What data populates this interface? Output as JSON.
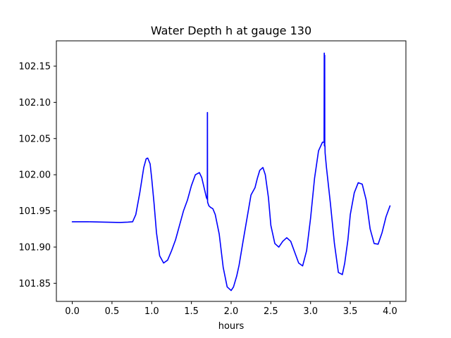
{
  "chart_data": {
    "type": "line",
    "title": "Water Depth h at gauge 130",
    "xlabel": "hours",
    "ylabel": "",
    "xlim": [
      -0.2,
      4.2
    ],
    "ylim": [
      101.825,
      102.185
    ],
    "grid": false,
    "x_ticks": [
      0.0,
      0.5,
      1.0,
      1.5,
      2.0,
      2.5,
      3.0,
      3.5,
      4.0
    ],
    "x_tick_labels": [
      "0.0",
      "0.5",
      "1.0",
      "1.5",
      "2.0",
      "2.5",
      "3.0",
      "3.5",
      "4.0"
    ],
    "y_ticks": [
      101.85,
      101.9,
      101.95,
      102.0,
      102.05,
      102.1,
      102.15
    ],
    "y_tick_labels": [
      "101.85",
      "101.90",
      "101.95",
      "102.00",
      "102.05",
      "102.10",
      "102.15"
    ],
    "series": [
      {
        "color": "#0000ff",
        "x": [
          0.0,
          0.2,
          0.4,
          0.6,
          0.7,
          0.76,
          0.8,
          0.85,
          0.9,
          0.93,
          0.95,
          0.98,
          1.0,
          1.03,
          1.06,
          1.1,
          1.15,
          1.2,
          1.25,
          1.3,
          1.35,
          1.4,
          1.45,
          1.5,
          1.55,
          1.6,
          1.63,
          1.66,
          1.69,
          1.7,
          1.701,
          1.702,
          1.703,
          1.704,
          1.72,
          1.74,
          1.77,
          1.8,
          1.85,
          1.9,
          1.95,
          2.0,
          2.03,
          2.07,
          2.1,
          2.15,
          2.2,
          2.25,
          2.3,
          2.33,
          2.36,
          2.4,
          2.43,
          2.47,
          2.5,
          2.55,
          2.6,
          2.65,
          2.7,
          2.75,
          2.8,
          2.85,
          2.9,
          2.95,
          3.0,
          3.05,
          3.1,
          3.15,
          3.17,
          3.172,
          3.173,
          3.174,
          3.175,
          3.176,
          3.178,
          3.179,
          3.18,
          3.181,
          3.183,
          3.2,
          3.25,
          3.3,
          3.35,
          3.4,
          3.43,
          3.47,
          3.5,
          3.55,
          3.6,
          3.65,
          3.7,
          3.75,
          3.8,
          3.85,
          3.9,
          3.95,
          4.0
        ],
        "y": [
          101.935,
          101.935,
          101.9345,
          101.934,
          101.9345,
          101.935,
          101.945,
          101.975,
          102.01,
          102.022,
          102.023,
          102.015,
          101.995,
          101.96,
          101.92,
          101.888,
          101.878,
          101.882,
          101.895,
          101.91,
          101.93,
          101.95,
          101.965,
          101.985,
          102.0,
          102.003,
          101.996,
          101.982,
          101.968,
          101.966,
          102.086,
          102.086,
          101.966,
          101.962,
          101.957,
          101.955,
          101.953,
          101.945,
          101.918,
          101.872,
          101.845,
          101.84,
          101.845,
          101.86,
          101.875,
          101.908,
          101.94,
          101.972,
          101.982,
          101.995,
          102.006,
          102.01,
          102.0,
          101.968,
          101.93,
          101.905,
          101.9,
          101.908,
          101.913,
          101.908,
          101.893,
          101.878,
          101.874,
          101.895,
          101.94,
          101.995,
          102.033,
          102.045,
          102.045,
          102.168,
          102.168,
          102.04,
          102.165,
          102.165,
          102.165,
          102.04,
          102.04,
          102.04,
          102.03,
          102.01,
          101.96,
          101.905,
          101.865,
          101.862,
          101.878,
          101.91,
          101.945,
          101.975,
          101.989,
          101.987,
          101.965,
          101.925,
          101.905,
          101.904,
          101.92,
          101.942,
          101.957
        ]
      }
    ]
  }
}
